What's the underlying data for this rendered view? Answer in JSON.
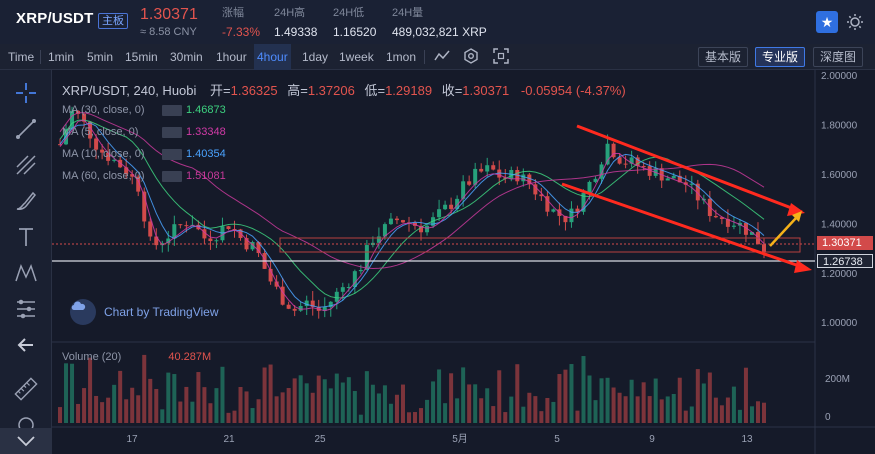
{
  "ticker": {
    "pair": "XRP/USDT",
    "badge": "主板",
    "last_price": "1.30371",
    "cny": "≈ 8.58 CNY",
    "change_label": "涨幅",
    "change_value": "-7.33%",
    "high_label": "24H高",
    "high_value": "1.49338",
    "low_label": "24H低",
    "low_value": "1.16520",
    "volume_label": "24H量",
    "volume_value": "489,032,821 XRP",
    "favorite_icon": "star-icon",
    "theme_icon": "sun-icon"
  },
  "toolbar": {
    "time_label": "Time",
    "intervals": [
      "1min",
      "5min",
      "15min",
      "30min",
      "1hour",
      "4hour",
      "1day",
      "1week",
      "1mon"
    ],
    "active_interval": "4hour",
    "indicator_icon": "indicator-settings-icon",
    "fullscreen_icon": "fullscreen-icon",
    "versions": [
      "基本版",
      "专业版",
      "深度图"
    ],
    "active_version": "专业版"
  },
  "drawing_tools": [
    "crosshair-icon",
    "trendline-icon",
    "pitchfork-icon",
    "brush-icon",
    "text-icon",
    "pattern-icon",
    "fib-icon",
    "back-arrow-icon",
    "ruler-icon",
    "zoom-icon"
  ],
  "chart": {
    "symbol_line": "XRP/USDT, 240, Huobi",
    "open_label": "开=",
    "open_value": "1.36325",
    "high_label": "高=",
    "high_value": "1.37206",
    "low_label": "低=",
    "low_value": "1.29189",
    "close_label": "收=",
    "close_value": "1.30371",
    "change": "-0.05954 (-4.37%)",
    "ma": [
      {
        "label": "MA (30, close, 0)",
        "value": "1.46873",
        "color": "#3dd17f"
      },
      {
        "label": "MA (5, close, 0)",
        "value": "1.33348",
        "color": "#d03aa6"
      },
      {
        "label": "MA (10, close, 0)",
        "value": "1.40354",
        "color": "#4aa3ff"
      },
      {
        "label": "MA (60, close, 0)",
        "value": "1.51081",
        "color": "#c7399a"
      }
    ],
    "branding": "Chart by TradingView",
    "volume_label": "Volume (20)",
    "volume_value": "40.287M",
    "price_axis": [
      "2.00000",
      "1.80000",
      "1.60000",
      "1.40000",
      "1.20000",
      "1.00000"
    ],
    "volume_axis": [
      "200M",
      "0"
    ],
    "date_axis": [
      "17",
      "21",
      "25",
      "5月",
      "5",
      "9",
      "13"
    ],
    "last_price_tag": "1.30371",
    "support_tag": "1.26738",
    "colors": {
      "up": "#26a17b",
      "down": "#d24a4a",
      "annotation_red": "#ff2a1f",
      "annotation_yellow": "#f5b21a"
    }
  },
  "chart_data": {
    "type": "candlestick",
    "ylim": [
      0.92,
      2.02
    ],
    "candles_approx_close": [
      1.72,
      1.86,
      1.79,
      1.7,
      1.66,
      1.62,
      1.55,
      1.3,
      1.34,
      1.38,
      1.42,
      1.34,
      1.36,
      1.4,
      1.33,
      1.3,
      1.18,
      1.1,
      1.05,
      1.08,
      1.04,
      1.1,
      1.16,
      1.22,
      1.34,
      1.38,
      1.42,
      1.4,
      1.38,
      1.43,
      1.48,
      1.55,
      1.6,
      1.62,
      1.58,
      1.6,
      1.56,
      1.5,
      1.44,
      1.42,
      1.5,
      1.6,
      1.72,
      1.66,
      1.64,
      1.62,
      1.6,
      1.58,
      1.56,
      1.5,
      1.44,
      1.42,
      1.4,
      1.36,
      1.3
    ]
  }
}
